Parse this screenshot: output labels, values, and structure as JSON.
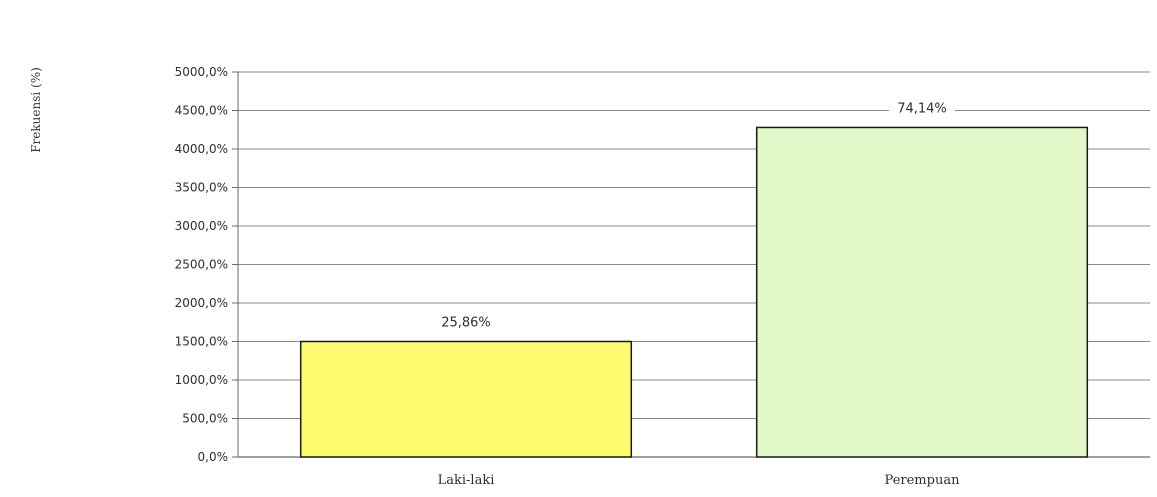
{
  "chart_data": {
    "type": "bar",
    "title": "",
    "xlabel": "",
    "ylabel": "Frekuensi (%)",
    "categories": [
      "Laki-laki",
      "Perempuan"
    ],
    "values": [
      1500,
      4280
    ],
    "data_labels": [
      "25,86%",
      "74,14%"
    ],
    "bar_colors": [
      "#fdfb6f",
      "#e2f8c8"
    ],
    "bar_border_color": "#1a1a1a",
    "ylim": [
      0,
      5000
    ],
    "y_ticks": [
      0,
      500,
      1000,
      1500,
      2000,
      2500,
      3000,
      3500,
      4000,
      4500,
      5000
    ],
    "y_tick_labels": [
      "0,0%",
      "500,0%",
      "1000,0%",
      "1500,0%",
      "2000,0%",
      "2500,0%",
      "3000,0%",
      "3500,0%",
      "4000,0%",
      "4500,0%",
      "5000,0%"
    ],
    "grid": true,
    "legend": "none"
  }
}
